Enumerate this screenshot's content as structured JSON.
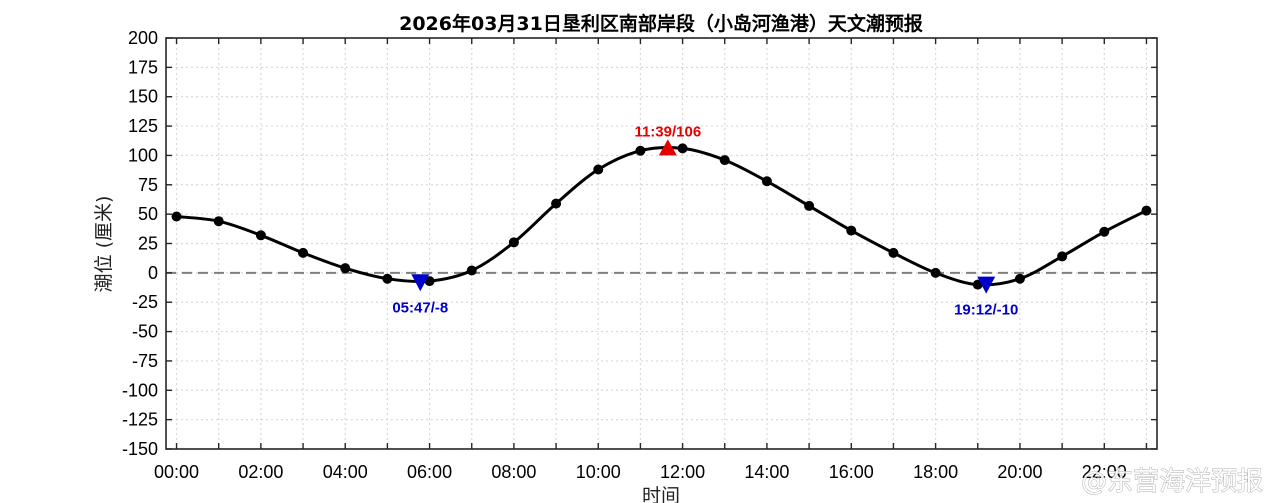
{
  "chart_data": {
    "type": "line",
    "title": "2026年03月31日垦利区南部岸段（小岛河渔港）天文潮预报",
    "xlabel": "时间",
    "ylabel": "潮位 (厘米)",
    "ylim": [
      -150,
      200
    ],
    "xlim": [
      -0.25,
      23.25
    ],
    "grid": true,
    "y_ticks": [
      200,
      175,
      150,
      125,
      100,
      75,
      50,
      25,
      0,
      -25,
      -50,
      -75,
      -100,
      -125,
      -150
    ],
    "x_tick_positions": [
      0,
      2,
      4,
      6,
      8,
      10,
      12,
      14,
      16,
      18,
      20,
      22
    ],
    "x_tick_labels": [
      "00:00",
      "02:00",
      "04:00",
      "06:00",
      "08:00",
      "10:00",
      "12:00",
      "14:00",
      "16:00",
      "18:00",
      "20:00",
      "22:00"
    ],
    "series": [
      {
        "x": [
          0,
          1,
          2,
          3,
          4,
          5,
          6,
          7,
          8,
          9,
          10,
          11,
          12,
          13,
          14,
          15,
          16,
          17,
          18,
          19,
          20,
          21,
          22,
          23
        ],
        "values": [
          48,
          44,
          32,
          17,
          4,
          -5,
          -7,
          2,
          26,
          59,
          88,
          104,
          106,
          96,
          78,
          57,
          36,
          17,
          0,
          -10,
          -5,
          14,
          35,
          53
        ],
        "color": "#000000"
      }
    ],
    "reference_line": {
      "y": 0,
      "style": "dashed",
      "color": "#7f7f7f"
    },
    "annotations": [
      {
        "kind": "high",
        "x": 11.65,
        "y": 106,
        "label": "11:39/106",
        "color": "#e60000",
        "marker": "triangle-up"
      },
      {
        "kind": "low",
        "x": 5.78,
        "y": -8,
        "label": "05:47/-8",
        "color": "#0000cc",
        "marker": "triangle-down"
      },
      {
        "kind": "low",
        "x": 19.2,
        "y": -10,
        "label": "19:12/-10",
        "color": "#0000cc",
        "marker": "triangle-down"
      }
    ]
  },
  "watermark": "@东营海洋预报"
}
